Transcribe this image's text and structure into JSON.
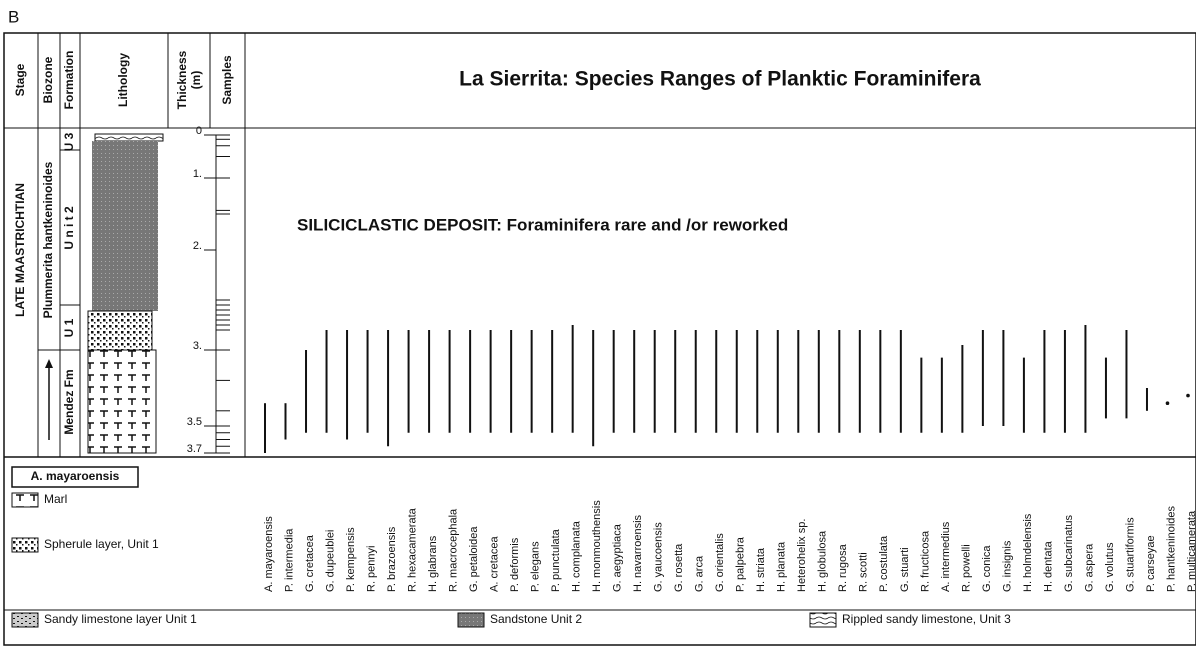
{
  "label": "B",
  "header": {
    "columns": [
      "Stage",
      "Biozone",
      "Formation",
      "Lithology"
    ],
    "thickness": [
      "Thickness",
      "(m)"
    ],
    "samples": "Samples",
    "title": "La Sierrita:  Species Ranges of Planktic  Foraminifera"
  },
  "column_labels": {
    "stage": "LATE MAASTRICHTIAN",
    "biozone": "Plummerita hantkeninoides",
    "formations": [
      "U 3",
      "U n i t  2",
      "U 1",
      "Mendez Fm"
    ]
  },
  "thickness_ticks": [
    0,
    {
      "value": 1,
      "label": "1."
    },
    {
      "value": 2,
      "label": "2."
    },
    {
      "value": 3,
      "label": "3."
    },
    3.5,
    3.7
  ],
  "samples": [
    0,
    0.1,
    0.25,
    0.5,
    1,
    1.45,
    1.5,
    2.5,
    2.55,
    2.6,
    2.65,
    2.7,
    2.75,
    2.8,
    3.0,
    3.2,
    3.4,
    3.5,
    3.55,
    3.6,
    3.65,
    3.7
  ],
  "annotation": "SILICICLASTIC DEPOSIT: Foraminifera rare and /or reworked",
  "species": [
    {
      "name": "A. mayaroensis",
      "top": 3.35,
      "base": 3.7
    },
    {
      "name": "P. intermedia",
      "top": 3.35,
      "base": 3.6
    },
    {
      "name": "G. cretacea",
      "top": 3.0,
      "base": 3.55
    },
    {
      "name": "G. dupeublei",
      "top": 2.8,
      "base": 3.55
    },
    {
      "name": "P. kempensis",
      "top": 2.8,
      "base": 3.6
    },
    {
      "name": "R. pennyi",
      "top": 2.8,
      "base": 3.55
    },
    {
      "name": "P. brazoensis",
      "top": 2.8,
      "base": 3.65
    },
    {
      "name": "R. hexacamerata",
      "top": 2.8,
      "base": 3.55
    },
    {
      "name": "H. glabrans",
      "top": 2.8,
      "base": 3.55
    },
    {
      "name": "R. macrocephala",
      "top": 2.8,
      "base": 3.55
    },
    {
      "name": "G. petaloidea",
      "top": 2.8,
      "base": 3.55
    },
    {
      "name": "A. cretacea",
      "top": 2.8,
      "base": 3.55
    },
    {
      "name": "P. deformis",
      "top": 2.8,
      "base": 3.55
    },
    {
      "name": "P. elegans",
      "top": 2.8,
      "base": 3.55
    },
    {
      "name": "P. punctulata",
      "top": 2.8,
      "base": 3.55
    },
    {
      "name": "H. complanata",
      "top": 2.75,
      "base": 3.55
    },
    {
      "name": "H. monmouthensis",
      "top": 2.8,
      "base": 3.65
    },
    {
      "name": "G. aegyptiaca",
      "top": 2.8,
      "base": 3.55
    },
    {
      "name": "H. navarroensis",
      "top": 2.8,
      "base": 3.55
    },
    {
      "name": "G. yaucoensis",
      "top": 2.8,
      "base": 3.55
    },
    {
      "name": "G. rosetta",
      "top": 2.8,
      "base": 3.55
    },
    {
      "name": "G. arca",
      "top": 2.8,
      "base": 3.55
    },
    {
      "name": "G. orientalis",
      "top": 2.8,
      "base": 3.55
    },
    {
      "name": "P. palpebra",
      "top": 2.8,
      "base": 3.55
    },
    {
      "name": "H. striata",
      "top": 2.8,
      "base": 3.55
    },
    {
      "name": "H. planata",
      "top": 2.8,
      "base": 3.55
    },
    {
      "name": "Heterohelix  sp.",
      "top": 2.8,
      "base": 3.55
    },
    {
      "name": "H. globulosa",
      "top": 2.8,
      "base": 3.55
    },
    {
      "name": "R. rugosa",
      "top": 2.8,
      "base": 3.55
    },
    {
      "name": "R. scotti",
      "top": 2.8,
      "base": 3.55
    },
    {
      "name": "P. costulata",
      "top": 2.8,
      "base": 3.55
    },
    {
      "name": "G. stuarti",
      "top": 2.8,
      "base": 3.55
    },
    {
      "name": "R. fructicosa",
      "top": 3.05,
      "base": 3.55
    },
    {
      "name": "A. intermedius",
      "top": 3.05,
      "base": 3.55
    },
    {
      "name": "R. powelli",
      "top": 2.95,
      "base": 3.55
    },
    {
      "name": "G. conica",
      "top": 2.8,
      "base": 3.5
    },
    {
      "name": "G. insignis",
      "top": 2.8,
      "base": 3.5
    },
    {
      "name": "H. holmdelensis",
      "top": 3.05,
      "base": 3.55
    },
    {
      "name": "H. dentata",
      "top": 2.8,
      "base": 3.55
    },
    {
      "name": "G. subcarinatus",
      "top": 2.8,
      "base": 3.55
    },
    {
      "name": "G. aspera",
      "top": 2.75,
      "base": 3.55
    },
    {
      "name": "G. volutus",
      "top": 3.05,
      "base": 3.45
    },
    {
      "name": "G. stuartiformis",
      "top": 2.8,
      "base": 3.45
    },
    {
      "name": "P. carseyae",
      "top": 3.25,
      "base": 3.4
    },
    {
      "name": "P. hantkeninoides",
      "top": 3.35,
      "base": 3.35
    },
    {
      "name": "P. multicamerata",
      "top": 3.3,
      "base": 3.3
    }
  ],
  "legend": {
    "zone_marker": "A. mayaroensis",
    "items": [
      "Marl",
      "Spherule layer, Unit 1",
      "Sandy limestone layer Unit 1",
      "Sandstone Unit 2",
      "Rippled sandy limestone, Unit 3"
    ]
  }
}
